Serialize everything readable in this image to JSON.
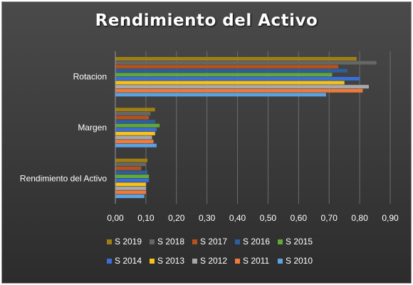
{
  "chart_data": {
    "type": "bar",
    "orientation": "horizontal",
    "title": "Rendimiento del Activo",
    "categories": [
      "Rendimiento del Activo",
      "Margen",
      "Rotacion"
    ],
    "x_ticks": [
      "0,00",
      "0,10",
      "0,20",
      "0,30",
      "0,40",
      "0,50",
      "0,60",
      "0,70",
      "0,80",
      "0,90"
    ],
    "xlim": [
      0,
      0.9
    ],
    "grid": true,
    "legend_position": "bottom",
    "series": [
      {
        "name": "S 2019",
        "color": "#a07f12",
        "values": [
          0.105,
          0.13,
          0.79
        ]
      },
      {
        "name": "S 2018",
        "color": "#666666",
        "values": [
          0.1,
          0.115,
          0.855
        ]
      },
      {
        "name": "S 2017",
        "color": "#b5521c",
        "values": [
          0.085,
          0.11,
          0.73
        ]
      },
      {
        "name": "S 2016",
        "color": "#2e5e9e",
        "values": [
          0.105,
          0.13,
          0.76
        ]
      },
      {
        "name": "S 2015",
        "color": "#5fa83a",
        "values": [
          0.11,
          0.145,
          0.71
        ]
      },
      {
        "name": "S 2014",
        "color": "#3a6ed6",
        "values": [
          0.11,
          0.135,
          0.8
        ]
      },
      {
        "name": "S 2013",
        "color": "#f5c21a",
        "values": [
          0.1,
          0.13,
          0.75
        ]
      },
      {
        "name": "S 2012",
        "color": "#a8a8a8",
        "values": [
          0.1,
          0.12,
          0.83
        ]
      },
      {
        "name": "S 2011",
        "color": "#f07a3c",
        "values": [
          0.1,
          0.125,
          0.81
        ]
      },
      {
        "name": "S 2010",
        "color": "#5ba3e0",
        "values": [
          0.095,
          0.135,
          0.69
        ]
      }
    ]
  }
}
